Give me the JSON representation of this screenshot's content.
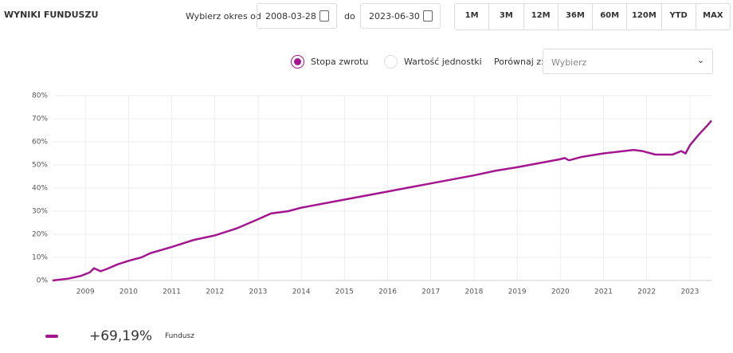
{
  "header": {
    "title": "WYNIKI FUNDUSZU",
    "from_label": "Wybierz okres od",
    "from_date": "2008-03-28",
    "to_label": "do",
    "to_date": "2023-06-30",
    "ranges": [
      "1M",
      "3M",
      "12M",
      "36M",
      "60M",
      "120M",
      "YTD",
      "MAX"
    ]
  },
  "options": {
    "return_label": "Stopa zwrotu",
    "unit_value_label": "Wartość jednostki",
    "compare_label": "Porównaj z:",
    "compare_placeholder": "Wybierz"
  },
  "chart_data": {
    "type": "line",
    "xlim": [
      2008.24,
      2023.5
    ],
    "xticks": [
      2009,
      2010,
      2011,
      2012,
      2013,
      2014,
      2015,
      2016,
      2017,
      2018,
      2019,
      2020,
      2021,
      2022,
      2023
    ],
    "ylim": [
      0,
      80
    ],
    "yticks": [
      {
        "value": 0,
        "label": "0%"
      },
      {
        "value": 10,
        "label": "10%"
      },
      {
        "value": 20,
        "label": "20%"
      },
      {
        "value": 30,
        "label": "30%"
      },
      {
        "value": 40,
        "label": "40%"
      },
      {
        "value": 50,
        "label": "50%"
      },
      {
        "value": 60,
        "label": "60%"
      },
      {
        "value": 70,
        "label": "70%"
      },
      {
        "value": 80,
        "label": "80%"
      }
    ],
    "grid": true,
    "x": [
      2008.24,
      2008.6,
      2008.9,
      2009.1,
      2009.2,
      2009.35,
      2009.5,
      2009.75,
      2010.0,
      2010.3,
      2010.5,
      2011.0,
      2011.5,
      2012.0,
      2012.5,
      2013.0,
      2013.3,
      2013.7,
      2014.0,
      2015.0,
      2016.0,
      2017.0,
      2018.0,
      2018.5,
      2019.0,
      2020.0,
      2020.1,
      2020.2,
      2020.5,
      2021.0,
      2021.7,
      2021.9,
      2022.0,
      2022.2,
      2022.6,
      2022.8,
      2022.9,
      2023.0,
      2023.2,
      2023.4,
      2023.5
    ],
    "series": [
      {
        "name": "Fundusz",
        "color": "#a3168f",
        "values": [
          0,
          0.8,
          2,
          3.5,
          5.3,
          4,
          5,
          7,
          8.5,
          10,
          11.8,
          14.5,
          17.5,
          19.5,
          22.5,
          26.5,
          29,
          30,
          31.5,
          35,
          38.5,
          42,
          45.5,
          47.5,
          49,
          52.5,
          53,
          52,
          53.5,
          55,
          56.5,
          56,
          55.5,
          54.5,
          54.5,
          56,
          55,
          58.5,
          63,
          67,
          69.19
        ]
      }
    ]
  },
  "legend": {
    "value": "+69,19%"
  }
}
